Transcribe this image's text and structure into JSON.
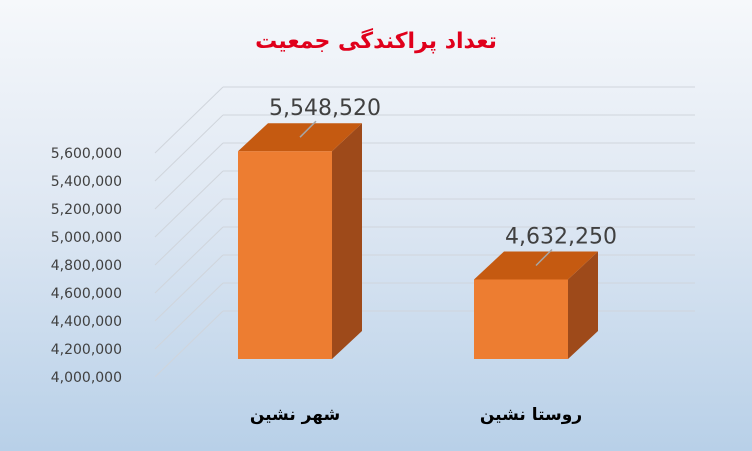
{
  "chart_data": {
    "type": "bar",
    "title": "تعداد پراکندگی  جمعیت",
    "categories": [
      "شهر نشین",
      "روستا نشین"
    ],
    "values": [
      5548520,
      4632250
    ],
    "value_labels": [
      "5,548,520",
      "4,632,250"
    ],
    "ylim": [
      4000000,
      5600000
    ],
    "yticks": [
      "4,000,000",
      "4,200,000",
      "4,400,000",
      "4,600,000",
      "4,800,000",
      "5,000,000",
      "5,200,000",
      "5,400,000",
      "5,600,000"
    ],
    "grid": true,
    "legend": "none",
    "colors": {
      "front": "#ed7d31",
      "top": "#c55a11",
      "side": "#9e4a1a",
      "title": "#e0001b"
    }
  }
}
